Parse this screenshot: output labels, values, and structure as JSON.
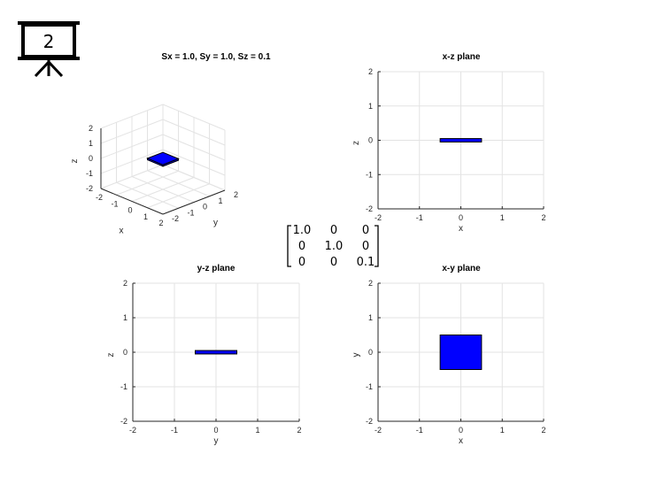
{
  "slide_badge": {
    "number": "2",
    "icon": "projector-screen-icon"
  },
  "shape_color": "#0000ff",
  "highlight_color": "#e00000",
  "matrix": {
    "rows": [
      [
        "1.0",
        "0",
        "0"
      ],
      [
        "0",
        "1.0",
        "0"
      ],
      [
        "0",
        "0",
        "0.1"
      ]
    ],
    "highlight_row": 2,
    "highlight_col": 2
  },
  "chart_data": [
    {
      "type": "scatter",
      "title": "Sx = 1.0, Sy = 1.0, Sz = 0.1",
      "view": "3d",
      "xlabel": "x",
      "ylabel": "y",
      "zlabel": "z",
      "xlim": [
        -2,
        2
      ],
      "ylim": [
        -2,
        2
      ],
      "zlim": [
        -2,
        2
      ],
      "xticks": [
        "-2",
        "-1",
        "0",
        "1",
        "2"
      ],
      "yticks": [
        "-2",
        "-1",
        "0",
        "1",
        "2"
      ],
      "zticks": [
        "-2",
        "-1",
        "0",
        "1",
        "2"
      ],
      "grid": true,
      "box": {
        "x": [
          -0.5,
          0.5
        ],
        "y": [
          -0.5,
          0.5
        ],
        "z": [
          -0.05,
          0.05
        ]
      }
    },
    {
      "type": "area",
      "title": "x-z plane",
      "xlabel": "x",
      "ylabel": "z",
      "xlim": [
        -2,
        2
      ],
      "ylim": [
        -2,
        2
      ],
      "xticks": [
        "-2",
        "-1",
        "0",
        "1",
        "2"
      ],
      "yticks": [
        "-2",
        "-1",
        "0",
        "1",
        "2"
      ],
      "grid": true,
      "rect": {
        "x": [
          -0.5,
          0.5
        ],
        "y": [
          -0.05,
          0.05
        ]
      }
    },
    {
      "type": "area",
      "title": "y-z plane",
      "xlabel": "y",
      "ylabel": "z",
      "xlim": [
        -2,
        2
      ],
      "ylim": [
        -2,
        2
      ],
      "xticks": [
        "-2",
        "-1",
        "0",
        "1",
        "2"
      ],
      "yticks": [
        "-2",
        "-1",
        "0",
        "1",
        "2"
      ],
      "grid": true,
      "rect": {
        "x": [
          -0.5,
          0.5
        ],
        "y": [
          -0.05,
          0.05
        ]
      }
    },
    {
      "type": "area",
      "title": "x-y plane",
      "xlabel": "x",
      "ylabel": "y",
      "xlim": [
        -2,
        2
      ],
      "ylim": [
        -2,
        2
      ],
      "xticks": [
        "-2",
        "-1",
        "0",
        "1",
        "2"
      ],
      "yticks": [
        "-2",
        "-1",
        "0",
        "1",
        "2"
      ],
      "grid": true,
      "rect": {
        "x": [
          -0.5,
          0.5
        ],
        "y": [
          -0.5,
          0.5
        ]
      }
    }
  ]
}
